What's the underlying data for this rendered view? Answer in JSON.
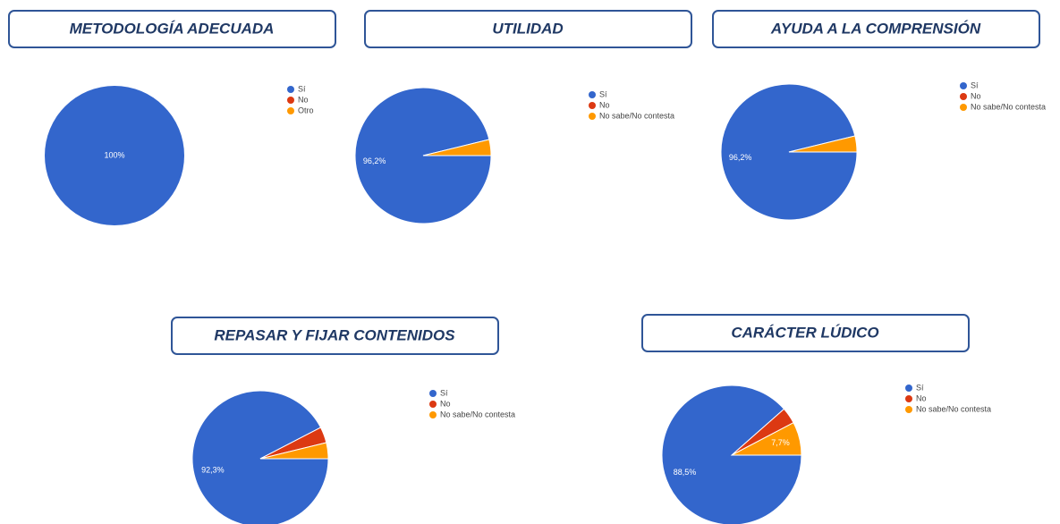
{
  "chart_data": [
    {
      "type": "pie",
      "title": "METODOLOGÍA ADECUADA",
      "categories": [
        "Sí",
        "No",
        "Otro"
      ],
      "values": [
        100,
        0,
        0
      ],
      "value_labels": [
        "100%",
        null,
        null
      ],
      "colors": [
        "#3366cc",
        "#dc3912",
        "#ff9900"
      ]
    },
    {
      "type": "pie",
      "title": "UTILIDAD",
      "categories": [
        "Sí",
        "No",
        "No sabe/No contesta"
      ],
      "values": [
        96.2,
        0,
        3.8
      ],
      "value_labels": [
        "96,2%",
        null,
        null
      ],
      "colors": [
        "#3366cc",
        "#dc3912",
        "#ff9900"
      ]
    },
    {
      "type": "pie",
      "title": "AYUDA A LA COMPRENSIÓN",
      "categories": [
        "Sí",
        "No",
        "No sabe/No contesta"
      ],
      "values": [
        96.2,
        0,
        3.8
      ],
      "value_labels": [
        "96,2%",
        null,
        null
      ],
      "colors": [
        "#3366cc",
        "#dc3912",
        "#ff9900"
      ]
    },
    {
      "type": "pie",
      "title": "REPASAR Y FIJAR CONTENIDOS",
      "categories": [
        "Sí",
        "No",
        "No sabe/No contesta"
      ],
      "values": [
        92.3,
        3.8,
        3.8
      ],
      "value_labels": [
        "92,3%",
        null,
        null
      ],
      "colors": [
        "#3366cc",
        "#dc3912",
        "#ff9900"
      ]
    },
    {
      "type": "pie",
      "title": "CARÁCTER LÚDICO",
      "categories": [
        "Sí",
        "No",
        "No sabe/No contesta"
      ],
      "values": [
        88.5,
        3.8,
        7.7
      ],
      "value_labels": [
        "88,5%",
        null,
        "7,7%"
      ],
      "colors": [
        "#3366cc",
        "#dc3912",
        "#ff9900"
      ]
    }
  ]
}
